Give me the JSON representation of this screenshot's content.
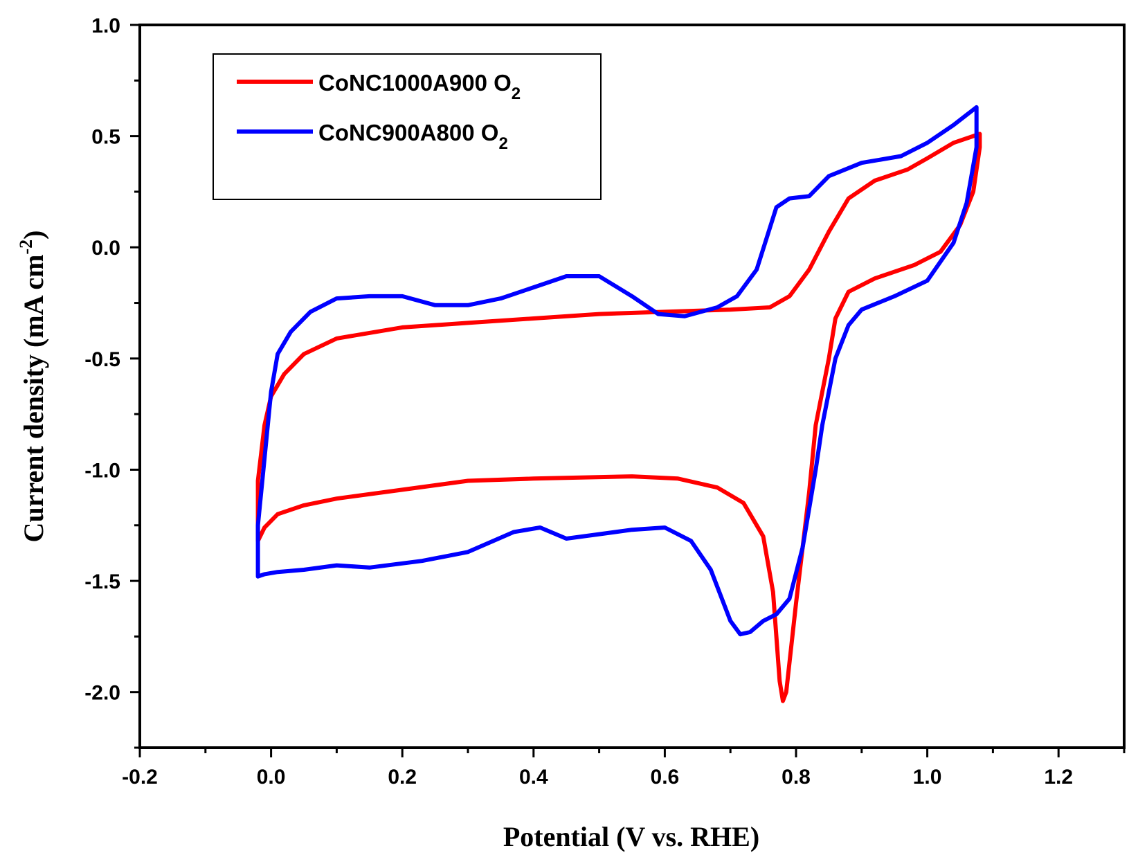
{
  "chart_data": {
    "type": "line",
    "title": "",
    "xlabel": "Potential (V vs. RHE)",
    "ylabel": "Current density (mA cm",
    "ylabel_superscript": "-2",
    "ylabel_suffix": ")",
    "xlim": [
      -0.2,
      1.3
    ],
    "ylim": [
      -2.25,
      1.0
    ],
    "xticks": [
      "-0.2",
      "0.0",
      "0.2",
      "0.4",
      "0.6",
      "0.8",
      "1.0",
      "1.2"
    ],
    "yticks": [
      "1.0",
      "0.5",
      "0.0",
      "-0.5",
      "-1.0",
      "-1.5",
      "-2.0"
    ],
    "legend_position": "top-left",
    "series": [
      {
        "name": "CoNC1000A900 O",
        "name_subscript": "2",
        "color": "#ff0000",
        "points": [
          [
            -0.02,
            -1.32
          ],
          [
            -0.02,
            -1.05
          ],
          [
            -0.01,
            -0.8
          ],
          [
            0.0,
            -0.67
          ],
          [
            0.02,
            -0.57
          ],
          [
            0.05,
            -0.48
          ],
          [
            0.1,
            -0.41
          ],
          [
            0.2,
            -0.36
          ],
          [
            0.3,
            -0.34
          ],
          [
            0.4,
            -0.32
          ],
          [
            0.5,
            -0.3
          ],
          [
            0.6,
            -0.29
          ],
          [
            0.7,
            -0.28
          ],
          [
            0.76,
            -0.27
          ],
          [
            0.79,
            -0.22
          ],
          [
            0.82,
            -0.1
          ],
          [
            0.85,
            0.07
          ],
          [
            0.88,
            0.22
          ],
          [
            0.92,
            0.3
          ],
          [
            0.97,
            0.35
          ],
          [
            1.0,
            0.4
          ],
          [
            1.04,
            0.47
          ],
          [
            1.08,
            0.51
          ],
          [
            1.08,
            0.45
          ],
          [
            1.07,
            0.25
          ],
          [
            1.05,
            0.1
          ],
          [
            1.02,
            -0.02
          ],
          [
            0.98,
            -0.08
          ],
          [
            0.92,
            -0.14
          ],
          [
            0.88,
            -0.2
          ],
          [
            0.86,
            -0.32
          ],
          [
            0.85,
            -0.5
          ],
          [
            0.83,
            -0.8
          ],
          [
            0.82,
            -1.1
          ],
          [
            0.8,
            -1.6
          ],
          [
            0.785,
            -2.0
          ],
          [
            0.78,
            -2.04
          ],
          [
            0.775,
            -1.95
          ],
          [
            0.765,
            -1.55
          ],
          [
            0.75,
            -1.3
          ],
          [
            0.72,
            -1.15
          ],
          [
            0.68,
            -1.08
          ],
          [
            0.62,
            -1.04
          ],
          [
            0.55,
            -1.03
          ],
          [
            0.4,
            -1.04
          ],
          [
            0.3,
            -1.05
          ],
          [
            0.2,
            -1.09
          ],
          [
            0.1,
            -1.13
          ],
          [
            0.05,
            -1.16
          ],
          [
            0.01,
            -1.2
          ],
          [
            -0.01,
            -1.26
          ],
          [
            -0.02,
            -1.32
          ]
        ]
      },
      {
        "name": "CoNC900A800 O",
        "name_subscript": "2",
        "color": "#0000ff",
        "points": [
          [
            -0.02,
            -1.48
          ],
          [
            -0.02,
            -1.25
          ],
          [
            -0.01,
            -0.95
          ],
          [
            0.0,
            -0.65
          ],
          [
            0.01,
            -0.48
          ],
          [
            0.03,
            -0.38
          ],
          [
            0.06,
            -0.29
          ],
          [
            0.1,
            -0.23
          ],
          [
            0.15,
            -0.22
          ],
          [
            0.2,
            -0.22
          ],
          [
            0.25,
            -0.26
          ],
          [
            0.3,
            -0.26
          ],
          [
            0.35,
            -0.23
          ],
          [
            0.4,
            -0.18
          ],
          [
            0.45,
            -0.13
          ],
          [
            0.5,
            -0.13
          ],
          [
            0.55,
            -0.22
          ],
          [
            0.59,
            -0.3
          ],
          [
            0.63,
            -0.31
          ],
          [
            0.68,
            -0.27
          ],
          [
            0.71,
            -0.22
          ],
          [
            0.74,
            -0.1
          ],
          [
            0.77,
            0.18
          ],
          [
            0.79,
            0.22
          ],
          [
            0.82,
            0.23
          ],
          [
            0.85,
            0.32
          ],
          [
            0.9,
            0.38
          ],
          [
            0.96,
            0.41
          ],
          [
            1.0,
            0.47
          ],
          [
            1.04,
            0.55
          ],
          [
            1.075,
            0.63
          ],
          [
            1.075,
            0.45
          ],
          [
            1.06,
            0.2
          ],
          [
            1.04,
            0.02
          ],
          [
            1.0,
            -0.15
          ],
          [
            0.95,
            -0.22
          ],
          [
            0.9,
            -0.28
          ],
          [
            0.88,
            -0.35
          ],
          [
            0.86,
            -0.5
          ],
          [
            0.84,
            -0.8
          ],
          [
            0.83,
            -1.0
          ],
          [
            0.81,
            -1.35
          ],
          [
            0.79,
            -1.58
          ],
          [
            0.77,
            -1.65
          ],
          [
            0.75,
            -1.68
          ],
          [
            0.73,
            -1.73
          ],
          [
            0.715,
            -1.74
          ],
          [
            0.7,
            -1.68
          ],
          [
            0.67,
            -1.45
          ],
          [
            0.64,
            -1.32
          ],
          [
            0.6,
            -1.26
          ],
          [
            0.55,
            -1.27
          ],
          [
            0.5,
            -1.29
          ],
          [
            0.45,
            -1.31
          ],
          [
            0.41,
            -1.26
          ],
          [
            0.37,
            -1.28
          ],
          [
            0.3,
            -1.37
          ],
          [
            0.23,
            -1.41
          ],
          [
            0.15,
            -1.44
          ],
          [
            0.1,
            -1.43
          ],
          [
            0.05,
            -1.45
          ],
          [
            0.01,
            -1.46
          ],
          [
            -0.01,
            -1.47
          ],
          [
            -0.02,
            -1.48
          ]
        ]
      }
    ]
  }
}
